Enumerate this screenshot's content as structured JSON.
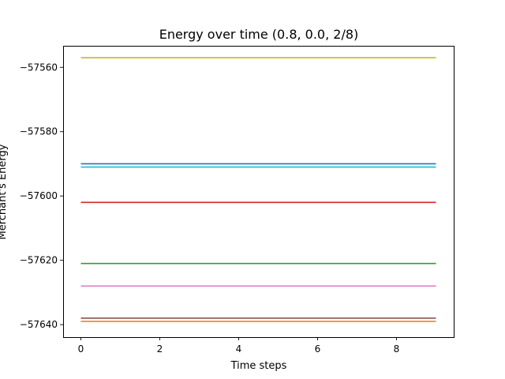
{
  "chart_data": {
    "type": "line",
    "title": "Energy over time (0.8, 0.0, 2/8)",
    "xlabel": "Time steps",
    "ylabel": "Merchant's Energy",
    "xlim": [
      -0.45,
      9.45
    ],
    "ylim": [
      -57643.9,
      -57553.3
    ],
    "x": [
      0,
      1,
      2,
      3,
      4,
      5,
      6,
      7,
      8,
      9
    ],
    "xticks": [
      0,
      2,
      4,
      6,
      8
    ],
    "yticks": [
      -57640,
      -57620,
      -57600,
      -57580,
      -57560
    ],
    "xtick_labels": [
      "0",
      "2",
      "4",
      "6",
      "8"
    ],
    "ytick_labels": [
      "−57640",
      "−57620",
      "−57600",
      "−57580",
      "−57560"
    ],
    "grid": false,
    "legend": "none",
    "series": [
      {
        "color": "#1f77b4",
        "values": [
          -57590,
          -57590,
          -57590,
          -57590,
          -57590,
          -57590,
          -57590,
          -57590,
          -57590,
          -57590
        ]
      },
      {
        "color": "#ff7f0e",
        "values": [
          -57639,
          -57639,
          -57639,
          -57639,
          -57639,
          -57639,
          -57639,
          -57639,
          -57639,
          -57639
        ]
      },
      {
        "color": "#2ca02c",
        "values": [
          -57621,
          -57621,
          -57621,
          -57621,
          -57621,
          -57621,
          -57621,
          -57621,
          -57621,
          -57621
        ]
      },
      {
        "color": "#d62728",
        "values": [
          -57602,
          -57602,
          -57602,
          -57602,
          -57602,
          -57602,
          -57602,
          -57602,
          -57602,
          -57602
        ]
      },
      {
        "color": "#8c564b",
        "values": [
          -57638,
          -57638,
          -57638,
          -57638,
          -57638,
          -57638,
          -57638,
          -57638,
          -57638,
          -57638
        ]
      },
      {
        "color": "#e377c2",
        "values": [
          -57628,
          -57628,
          -57628,
          -57628,
          -57628,
          -57628,
          -57628,
          -57628,
          -57628,
          -57628
        ]
      },
      {
        "color": "#bcbd22",
        "values": [
          -57557,
          -57557,
          -57557,
          -57557,
          -57557,
          -57557,
          -57557,
          -57557,
          -57557,
          -57557
        ]
      },
      {
        "color": "#17becf",
        "values": [
          -57591,
          -57591,
          -57591,
          -57591,
          -57591,
          -57591,
          -57591,
          -57591,
          -57591,
          -57591
        ]
      }
    ]
  }
}
